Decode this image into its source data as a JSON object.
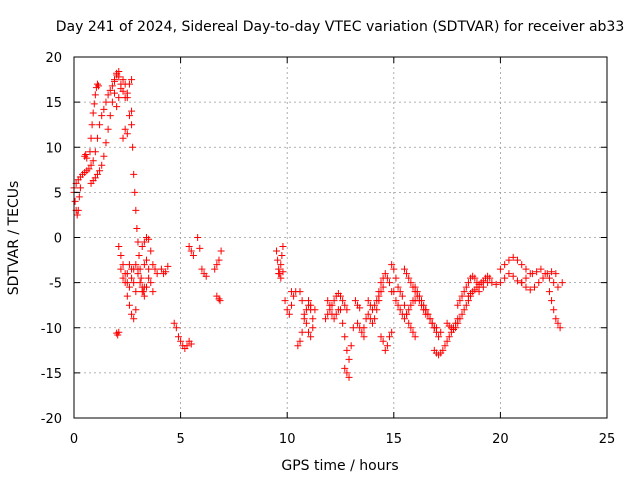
{
  "chart_data": {
    "type": "scatter",
    "title": "Day 241 of 2024, Sidereal Day-to-day VTEC variation (SDTVAR) for receiver ab33",
    "xlabel": "GPS time / hours",
    "ylabel": "SDTVAR / TECUs",
    "xlim": [
      0,
      25
    ],
    "ylim": [
      -20,
      20
    ],
    "xticks": [
      0,
      5,
      10,
      15,
      20,
      25
    ],
    "yticks": [
      -20,
      -15,
      -10,
      -5,
      0,
      5,
      10,
      15,
      20
    ],
    "xtick_labels": [
      "0",
      "5",
      "10",
      "15",
      "20",
      "25"
    ],
    "ytick_labels": [
      "-20",
      "-15",
      "-10",
      "-5",
      "0",
      "5",
      "10",
      "15",
      "20"
    ],
    "grid": true,
    "marker": "+",
    "marker_color": "#ff0000",
    "segments": [
      {
        "x": [
          0.0,
          0.05,
          0.1,
          0.15,
          0.2,
          0.25,
          0.3
        ],
        "y": [
          5.0,
          4.0,
          3.0,
          2.5,
          3.0,
          4.5,
          5.5
        ]
      },
      {
        "x": [
          0.0,
          0.1,
          0.2,
          0.3,
          0.4,
          0.5,
          0.6,
          0.7,
          0.8,
          0.9,
          1.0,
          1.1,
          1.2,
          1.3,
          1.4,
          1.5,
          1.6,
          1.7,
          1.8,
          1.9,
          2.0,
          2.1
        ],
        "y": [
          5.5,
          6.0,
          6.4,
          6.7,
          7.0,
          7.2,
          7.4,
          7.6,
          8.0,
          8.5,
          9.5,
          11.0,
          12.5,
          13.5,
          14.2,
          15.0,
          15.8,
          16.3,
          16.8,
          17.3,
          18.0,
          18.4
        ]
      },
      {
        "x": [
          0.5,
          0.55,
          0.6
        ],
        "y": [
          9.0,
          9.2,
          8.8
        ]
      },
      {
        "x": [
          0.75,
          0.8,
          0.85,
          0.9,
          0.95,
          1.0,
          1.05,
          1.1,
          1.15
        ],
        "y": [
          9.5,
          11.0,
          12.5,
          13.8,
          14.8,
          15.8,
          16.6,
          17.0,
          16.8
        ]
      },
      {
        "x": [
          0.8,
          0.9,
          1.0,
          1.1,
          1.2,
          1.3,
          1.4,
          1.5,
          1.6,
          1.7,
          1.8,
          1.9
        ],
        "y": [
          6.0,
          6.3,
          6.6,
          7.0,
          7.4,
          8.0,
          9.0,
          10.5,
          12.0,
          13.5,
          15.0,
          16.0
        ]
      },
      {
        "x": [
          1.9,
          2.0,
          2.1,
          2.2,
          2.3,
          2.4,
          2.5,
          2.6,
          2.7
        ],
        "y": [
          17.5,
          18.2,
          17.8,
          17.0,
          16.2,
          15.5,
          16.0,
          17.0,
          17.5
        ]
      },
      {
        "x": [
          2.0,
          2.1,
          2.2,
          2.3,
          2.4,
          2.5,
          2.6,
          2.7
        ],
        "y": [
          14.5,
          15.5,
          16.5,
          17.5,
          17.0,
          15.5,
          13.5,
          12.5
        ]
      },
      {
        "x": [
          2.3,
          2.4,
          2.5
        ],
        "y": [
          11.0,
          12.0,
          11.5
        ]
      },
      {
        "x": [
          2.7,
          2.75,
          2.8,
          2.85,
          2.9,
          2.95,
          3.0,
          3.05,
          3.1,
          3.15,
          3.2,
          3.25,
          3.3
        ],
        "y": [
          14.0,
          10.0,
          7.0,
          5.0,
          3.0,
          1.0,
          -0.5,
          -2.0,
          -3.5,
          -4.5,
          -5.5,
          -6.0,
          -5.5
        ]
      },
      {
        "x": [
          2.0,
          2.05,
          2.1
        ],
        "y": [
          -10.6,
          -10.8,
          -10.5
        ]
      },
      {
        "x": [
          2.1,
          2.2,
          2.3,
          2.4,
          2.5,
          2.6,
          2.7,
          2.8,
          2.9,
          3.0
        ],
        "y": [
          -1.0,
          -2.0,
          -3.0,
          -4.0,
          -5.0,
          -5.5,
          -4.5,
          -3.5,
          -3.0,
          -3.5
        ]
      },
      {
        "x": [
          2.2,
          2.3,
          2.4,
          2.5,
          2.6,
          2.7,
          2.8,
          2.9
        ],
        "y": [
          -3.5,
          -4.5,
          -5.0,
          -4.0,
          -3.0,
          -3.5,
          -5.0,
          -6.0
        ]
      },
      {
        "x": [
          2.5,
          2.6,
          2.7,
          2.8,
          2.9
        ],
        "y": [
          -6.5,
          -7.5,
          -8.5,
          -9.0,
          -8.0
        ]
      },
      {
        "x": [
          3.0,
          3.1,
          3.2,
          3.3,
          3.4,
          3.5,
          3.6,
          3.7
        ],
        "y": [
          -4.0,
          -5.0,
          -6.0,
          -6.5,
          -5.5,
          -4.5,
          -5.0,
          -6.0
        ]
      },
      {
        "x": [
          3.2,
          3.3,
          3.4,
          3.5,
          3.6,
          3.7,
          3.8,
          3.9
        ],
        "y": [
          -1.0,
          -0.5,
          0.0,
          -0.2,
          -1.5,
          -3.0,
          -3.5,
          -4.0
        ]
      },
      {
        "x": [
          3.3,
          3.4,
          3.5
        ],
        "y": [
          -3.0,
          -2.5,
          -3.5
        ]
      },
      {
        "x": [
          4.1,
          4.2,
          4.3,
          4.4
        ],
        "y": [
          -3.5,
          -4.0,
          -3.8,
          -3.2
        ]
      },
      {
        "x": [
          4.7,
          4.8,
          4.9,
          5.0,
          5.1,
          5.2
        ],
        "y": [
          -9.5,
          -10.0,
          -11.0,
          -11.5,
          -12.0,
          -12.3
        ]
      },
      {
        "x": [
          5.3,
          5.4,
          5.5
        ],
        "y": [
          -12.0,
          -11.5,
          -11.8
        ]
      },
      {
        "x": [
          5.4,
          5.5,
          5.6
        ],
        "y": [
          -1.0,
          -1.5,
          -2.0
        ]
      },
      {
        "x": [
          5.8,
          5.9
        ],
        "y": [
          0.0,
          -1.2
        ]
      },
      {
        "x": [
          6.0,
          6.1,
          6.2
        ],
        "y": [
          -3.5,
          -4.0,
          -4.3
        ]
      },
      {
        "x": [
          6.6,
          6.7,
          6.8,
          6.9
        ],
        "y": [
          -3.5,
          -3.0,
          -2.5,
          -1.5
        ]
      },
      {
        "x": [
          6.7,
          6.8,
          6.85
        ],
        "y": [
          -6.5,
          -6.8,
          -7.0
        ]
      },
      {
        "x": [
          9.5,
          9.55,
          9.6,
          9.65,
          9.7,
          9.75,
          9.8
        ],
        "y": [
          -1.5,
          -2.5,
          -3.5,
          -4.0,
          -3.0,
          -2.0,
          -1.0
        ]
      },
      {
        "x": [
          9.6,
          9.7,
          9.8
        ],
        "y": [
          -4.0,
          -4.5,
          -3.8
        ]
      },
      {
        "x": [
          9.9,
          10.0,
          10.1,
          10.2
        ],
        "y": [
          -7.0,
          -8.0,
          -8.5,
          -7.5
        ]
      },
      {
        "x": [
          10.2,
          10.3,
          10.4
        ],
        "y": [
          -6.0,
          -6.5,
          -6.0
        ]
      },
      {
        "x": [
          10.5,
          10.6,
          10.7,
          10.8,
          10.9,
          11.0,
          11.1
        ],
        "y": [
          -12.0,
          -11.5,
          -10.5,
          -9.0,
          -8.0,
          -7.5,
          -8.0
        ]
      },
      {
        "x": [
          10.6,
          10.7,
          10.8,
          10.9,
          11.0,
          11.1,
          11.2
        ],
        "y": [
          -6.0,
          -7.0,
          -8.5,
          -9.5,
          -10.5,
          -11.0,
          -10.0
        ]
      },
      {
        "x": [
          11.0,
          11.1,
          11.2,
          11.3
        ],
        "y": [
          -7.0,
          -7.5,
          -9.0,
          -8.0
        ]
      },
      {
        "x": [
          11.8,
          11.9,
          12.0,
          12.1,
          12.2,
          12.3,
          12.4,
          12.5,
          12.6,
          12.7,
          12.8
        ],
        "y": [
          -9.0,
          -8.5,
          -8.0,
          -7.5,
          -7.0,
          -6.5,
          -6.2,
          -6.5,
          -7.0,
          -7.5,
          -8.0
        ]
      },
      {
        "x": [
          11.9,
          12.0,
          12.1,
          12.2,
          12.3,
          12.4
        ],
        "y": [
          -7.0,
          -7.5,
          -8.5,
          -9.0,
          -8.5,
          -8.0
        ]
      },
      {
        "x": [
          12.5,
          12.6,
          12.7,
          12.8,
          12.9,
          13.0,
          13.1
        ],
        "y": [
          -8.0,
          -9.5,
          -11.0,
          -12.5,
          -13.5,
          -12.0,
          -10.0
        ]
      },
      {
        "x": [
          12.7,
          12.8,
          12.9
        ],
        "y": [
          -14.5,
          -15.0,
          -15.5
        ]
      },
      {
        "x": [
          13.2,
          13.3,
          13.4
        ],
        "y": [
          -7.0,
          -7.5,
          -7.8
        ]
      },
      {
        "x": [
          13.3,
          13.4,
          13.5,
          13.6
        ],
        "y": [
          -9.5,
          -10.0,
          -10.5,
          -11.0
        ]
      },
      {
        "x": [
          13.6,
          13.7,
          13.8,
          13.9,
          14.0,
          14.1,
          14.2,
          14.3,
          14.4,
          14.5
        ],
        "y": [
          -10.0,
          -9.0,
          -8.5,
          -9.0,
          -9.5,
          -9.0,
          -8.0,
          -7.0,
          -6.0,
          -5.5
        ]
      },
      {
        "x": [
          13.8,
          13.9,
          14.0,
          14.1,
          14.2,
          14.3
        ],
        "y": [
          -7.0,
          -7.5,
          -8.0,
          -7.5,
          -7.0,
          -6.5
        ]
      },
      {
        "x": [
          14.3,
          14.4,
          14.5,
          14.6,
          14.7,
          14.8,
          14.9
        ],
        "y": [
          -6.0,
          -5.0,
          -4.5,
          -4.0,
          -4.5,
          -5.0,
          -6.0
        ]
      },
      {
        "x": [
          14.4,
          14.5,
          14.6,
          14.7,
          14.8,
          14.9
        ],
        "y": [
          -11.0,
          -11.5,
          -12.5,
          -12.0,
          -11.0,
          -10.5
        ]
      },
      {
        "x": [
          14.9,
          15.0,
          15.1,
          15.2,
          15.3,
          15.4,
          15.5,
          15.6,
          15.7,
          15.8,
          15.9,
          16.0
        ],
        "y": [
          -3.0,
          -3.5,
          -4.5,
          -5.5,
          -6.0,
          -6.5,
          -7.5,
          -8.5,
          -9.5,
          -10.0,
          -10.5,
          -11.0
        ]
      },
      {
        "x": [
          15.0,
          15.1,
          15.2,
          15.3,
          15.4,
          15.5,
          15.6,
          15.7,
          15.8,
          15.9,
          16.0
        ],
        "y": [
          -6.0,
          -7.0,
          -7.5,
          -8.0,
          -8.5,
          -9.0,
          -8.5,
          -8.0,
          -7.5,
          -7.0,
          -7.0
        ]
      },
      {
        "x": [
          15.5,
          15.6,
          15.7,
          15.8,
          15.9,
          16.0,
          16.1,
          16.2,
          16.3,
          16.4,
          16.5
        ],
        "y": [
          -3.5,
          -4.0,
          -4.5,
          -5.0,
          -5.5,
          -6.0,
          -6.5,
          -7.0,
          -7.5,
          -8.0,
          -8.5
        ]
      },
      {
        "x": [
          16.0,
          16.1,
          16.2,
          16.3,
          16.4,
          16.5,
          16.6,
          16.7,
          16.8,
          16.9,
          17.0
        ],
        "y": [
          -5.5,
          -6.0,
          -6.5,
          -7.0,
          -7.5,
          -8.0,
          -8.5,
          -9.0,
          -9.5,
          -10.0,
          -10.0
        ]
      },
      {
        "x": [
          16.5,
          16.6,
          16.7,
          16.8,
          16.9,
          17.0,
          17.1,
          17.2
        ],
        "y": [
          -8.0,
          -8.5,
          -9.0,
          -9.5,
          -10.0,
          -10.5,
          -11.0,
          -10.5
        ]
      },
      {
        "x": [
          16.9,
          17.0,
          17.1,
          17.2,
          17.3,
          17.4,
          17.5,
          17.6,
          17.7,
          17.8,
          17.9,
          18.0
        ],
        "y": [
          -12.5,
          -12.8,
          -13.0,
          -12.8,
          -12.5,
          -12.0,
          -11.5,
          -11.0,
          -10.5,
          -10.0,
          -9.5,
          -9.0
        ]
      },
      {
        "x": [
          17.5,
          17.6,
          17.7,
          17.8,
          17.9,
          18.0,
          18.1,
          18.2,
          18.3,
          18.4,
          18.5,
          18.6
        ],
        "y": [
          -9.5,
          -9.8,
          -10.0,
          -10.2,
          -10.0,
          -9.5,
          -9.0,
          -8.5,
          -8.0,
          -7.5,
          -7.0,
          -6.5
        ]
      },
      {
        "x": [
          18.0,
          18.1,
          18.2,
          18.3,
          18.4,
          18.5,
          18.6,
          18.7,
          18.8,
          18.9,
          19.0
        ],
        "y": [
          -7.5,
          -7.0,
          -6.5,
          -6.0,
          -5.5,
          -5.0,
          -4.5,
          -4.3,
          -4.5,
          -5.0,
          -5.5
        ]
      },
      {
        "x": [
          18.5,
          18.6,
          18.7,
          18.8,
          18.9,
          19.0,
          19.1,
          19.2,
          19.3,
          19.4,
          19.5
        ],
        "y": [
          -6.5,
          -6.2,
          -6.0,
          -5.8,
          -5.5,
          -5.2,
          -5.0,
          -4.8,
          -4.5,
          -4.3,
          -4.5
        ]
      },
      {
        "x": [
          19.0,
          19.2,
          19.4,
          19.6,
          19.8,
          20.0,
          20.2,
          20.4,
          20.6,
          20.8,
          21.0,
          21.2,
          21.4
        ],
        "y": [
          -6.0,
          -5.5,
          -5.0,
          -5.0,
          -5.2,
          -5.0,
          -4.5,
          -4.0,
          -4.3,
          -4.8,
          -5.0,
          -4.5,
          -4.0
        ]
      },
      {
        "x": [
          20.0,
          20.2,
          20.4,
          20.6,
          20.8,
          21.0,
          21.2
        ],
        "y": [
          -3.5,
          -3.0,
          -2.5,
          -2.2,
          -2.5,
          -3.0,
          -3.5
        ]
      },
      {
        "x": [
          21.0,
          21.2,
          21.4,
          21.6,
          21.8,
          22.0,
          22.2,
          22.4,
          22.6
        ],
        "y": [
          -5.0,
          -5.5,
          -5.8,
          -5.5,
          -5.0,
          -4.5,
          -4.0,
          -3.8,
          -4.0
        ]
      },
      {
        "x": [
          21.5,
          21.7,
          21.9,
          22.1,
          22.3,
          22.5,
          22.7,
          22.9
        ],
        "y": [
          -4.0,
          -3.8,
          -3.5,
          -4.0,
          -4.5,
          -5.0,
          -5.5,
          -5.0
        ]
      },
      {
        "x": [
          22.3,
          22.4,
          22.5,
          22.6,
          22.7,
          22.8
        ],
        "y": [
          -6.0,
          -7.0,
          -8.0,
          -9.0,
          -9.5,
          -10.0
        ]
      }
    ]
  }
}
